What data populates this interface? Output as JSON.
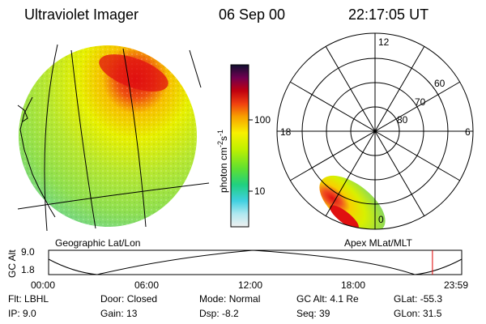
{
  "header": {
    "title": "Ultraviolet Imager",
    "date": "06 Sep 00",
    "time": "22:17:05 UT"
  },
  "left_panel": {
    "label": "Geographic Lat/Lon"
  },
  "right_panel": {
    "label": "Apex  MLat/MLT",
    "mlt_labels": {
      "top": "12",
      "left": "18",
      "right": "6",
      "bottom": "0"
    },
    "lat_labels": [
      "60",
      "70",
      "80"
    ]
  },
  "colorbar": {
    "unit_label": "photon cm",
    "unit_sup1": "-2",
    "unit_s": "s",
    "unit_sup2": "-1",
    "ticks": [
      "100",
      "10"
    ]
  },
  "altitude_plot": {
    "ylabel": "GC Alt",
    "y_ticks": [
      "9.0",
      "1.8"
    ],
    "x_ticks": [
      "00:00",
      "06:00",
      "12:00",
      "18:00",
      "23:59"
    ],
    "marker_hour": 22.285,
    "marker_color": "#e00000"
  },
  "info": {
    "row1": [
      {
        "label": "Flt:",
        "value": "LBHL"
      },
      {
        "label": "Door:",
        "value": "Closed"
      },
      {
        "label": "Mode:",
        "value": "Normal"
      },
      {
        "label": "GC Alt:",
        "value": "4.1 Re"
      },
      {
        "label": "GLat:",
        "value": "-55.3"
      }
    ],
    "row2": [
      {
        "label": "IP:",
        "value": "9.0"
      },
      {
        "label": "Gain:",
        "value": "13"
      },
      {
        "label": "Dsp:",
        "value": "-8.2"
      },
      {
        "label": "Seq:",
        "value": "39"
      },
      {
        "label": "GLon:",
        "value": "31.5"
      }
    ]
  }
}
